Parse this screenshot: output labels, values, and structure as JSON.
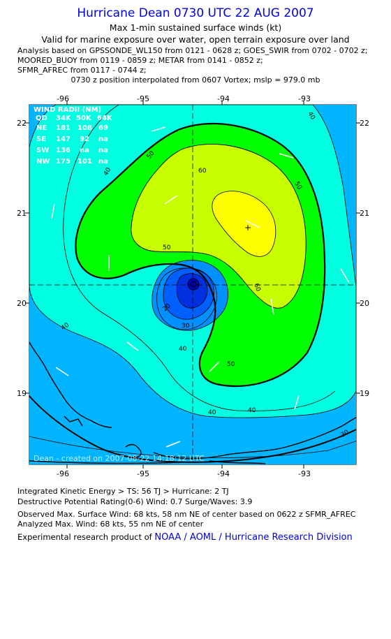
{
  "title": "Hurricane Dean 0730 UTC 22 AUG 2007",
  "subtitle1": "Max 1-min sustained surface winds (kt)",
  "subtitle2": "Valid for marine exposure over water, open terrain exposure over land",
  "analysis_lines": [
    "Analysis based on  GPSSONDE_WL150 from 0121 - 0628 z;  GOES_SWIR from 0702 - 0702 z;",
    "MOORED_BUOY from 0119 - 0859 z;  METAR from 0141 - 0852 z;",
    "SFMR_AFREC from 0117 - 0744 z;"
  ],
  "position_line": "0730 z position interpolated from 0607 Vortex; mslp = 979.0 mb",
  "map": {
    "x_ticks": [
      "-96",
      "-95",
      "-94",
      "-93"
    ],
    "y_ticks": [
      "22",
      "21",
      "20",
      "19"
    ],
    "wind_radii": {
      "title": "WIND RADII (NM)",
      "header": [
        "QD",
        "34K",
        "50K",
        "64K"
      ],
      "rows": [
        [
          "NE",
          "181",
          "108",
          "69"
        ],
        [
          "SE",
          "147",
          "92",
          "na"
        ],
        [
          "SW",
          "136",
          "na",
          "na"
        ],
        [
          "NW",
          "175",
          "101",
          "na"
        ]
      ]
    },
    "contour_labels": {
      "c20": "20",
      "c30": "30",
      "c40": "40",
      "c50": "50",
      "c60": "60"
    },
    "created": "Dean - created on 2007-08-22 14:18:12 UTC",
    "colors": {
      "lt40": "#00b4ff",
      "b40_50": "#00ffe0",
      "b50_60": "#00ff00",
      "b60_70": "#c8ff00",
      "gt70": "#ffff00",
      "core1": "#0090ff",
      "core2": "#0060ff",
      "core3": "#0030e0",
      "eye": "#0000c0"
    }
  },
  "footer": {
    "ike": "Integrated Kinetic Energy > TS: 56 TJ   > Hurricane: 2 TJ",
    "dpr": "Destructive Potential Rating(0-6)   Wind: 0.7 Surge/Waves: 3.9",
    "observed": "Observed Max. Surface Wind: 68 kts, 58 nm NE of center based on 0622 z SFMR_AFREC",
    "analyzed": "Analyzed Max. Wind: 68 kts, 55 nm NE of center",
    "credit_prefix": "Experimental research product of ",
    "credit_link": "NOAA / AOML / Hurricane Research Division"
  }
}
